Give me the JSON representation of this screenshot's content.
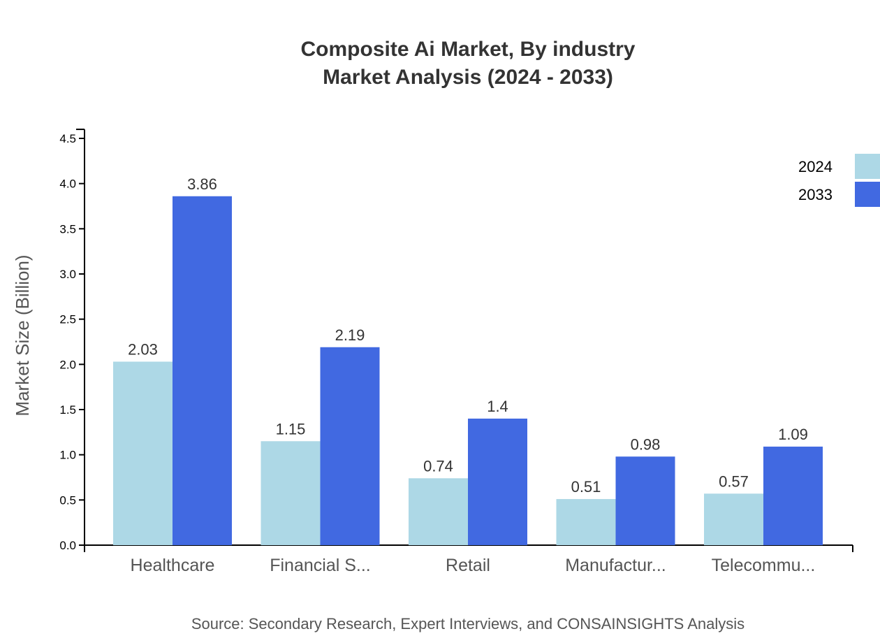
{
  "chart_data": {
    "type": "bar",
    "title": "Composite Ai Market, By industry",
    "subtitle": "Market Analysis (2024 - 2033)",
    "xlabel": "",
    "ylabel": "Market Size (Billion)",
    "ylim": [
      0,
      4.6
    ],
    "yticks": [
      "0.0",
      "0.5",
      "1.0",
      "1.5",
      "2.0",
      "2.5",
      "3.0",
      "3.5",
      "4.0",
      "4.5"
    ],
    "categories": [
      "Healthcare",
      "Financial S...",
      "Retail",
      "Manufactur...",
      "Telecommu..."
    ],
    "series": [
      {
        "name": "2024",
        "color": "#ADD8E6",
        "values": [
          2.03,
          1.15,
          0.74,
          0.51,
          0.57
        ]
      },
      {
        "name": "2033",
        "color": "#4169E1",
        "values": [
          3.86,
          2.19,
          1.4,
          0.98,
          1.09
        ]
      }
    ],
    "legend_position": "top-right",
    "grid": false,
    "source": "Source: Secondary Research, Expert Interviews, and CONSAINSIGHTS Analysis"
  }
}
